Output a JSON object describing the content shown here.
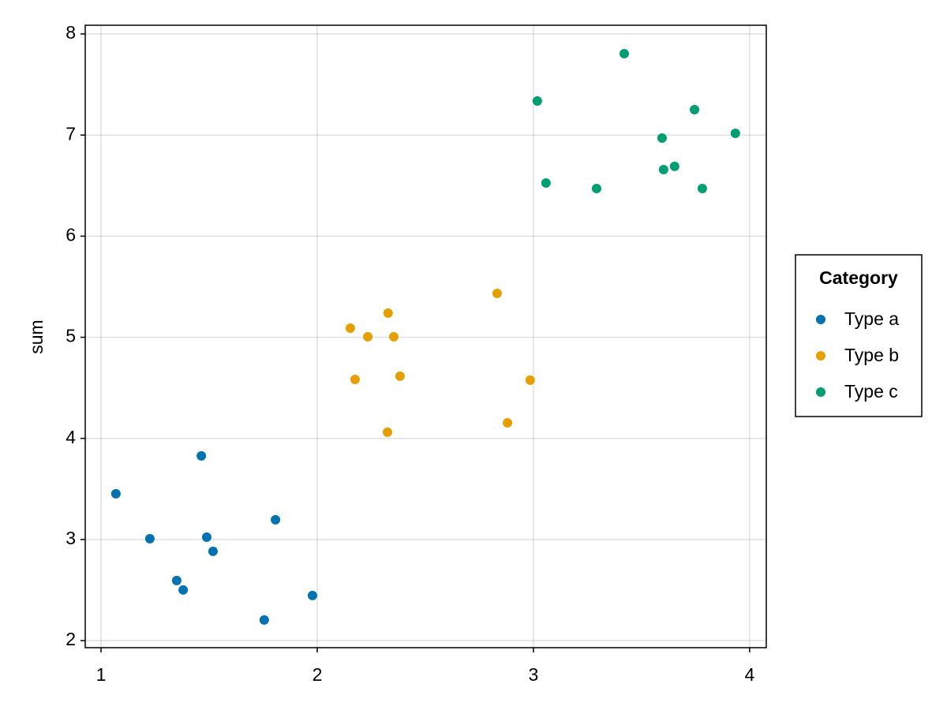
{
  "chart_data": {
    "type": "scatter",
    "ylabel": "sum",
    "legend_title": "Category",
    "legend_position": "right",
    "xlim": [
      0.927,
      4.077
    ],
    "xticks": [
      1,
      2,
      3,
      4
    ],
    "ylim": [
      1.93,
      8.086
    ],
    "yticks": [
      2,
      3,
      4,
      5,
      6,
      7,
      8
    ],
    "grid": true,
    "series": [
      {
        "name": "Type a",
        "color": "#0072b2",
        "x": [
          1.069,
          1.226,
          1.35,
          1.38,
          1.464,
          1.489,
          1.518,
          1.755,
          1.807,
          1.978
        ],
        "y": [
          3.452,
          3.008,
          2.594,
          2.501,
          3.827,
          3.023,
          2.883,
          2.204,
          3.195,
          2.446
        ]
      },
      {
        "name": "Type b",
        "color": "#e69f00",
        "x": [
          2.153,
          2.175,
          2.234,
          2.328,
          2.325,
          2.354,
          2.383,
          2.832,
          2.88,
          2.985
        ],
        "y": [
          5.09,
          4.583,
          5.005,
          5.239,
          4.061,
          5.005,
          4.615,
          5.434,
          4.154,
          4.576
        ]
      },
      {
        "name": "Type c",
        "color": "#009e73",
        "x": [
          3.018,
          3.058,
          3.292,
          3.42,
          3.595,
          3.602,
          3.653,
          3.745,
          3.781,
          3.934
        ],
        "y": [
          7.337,
          6.526,
          6.471,
          7.805,
          6.97,
          6.658,
          6.69,
          7.251,
          6.471,
          7.017
        ]
      }
    ]
  }
}
